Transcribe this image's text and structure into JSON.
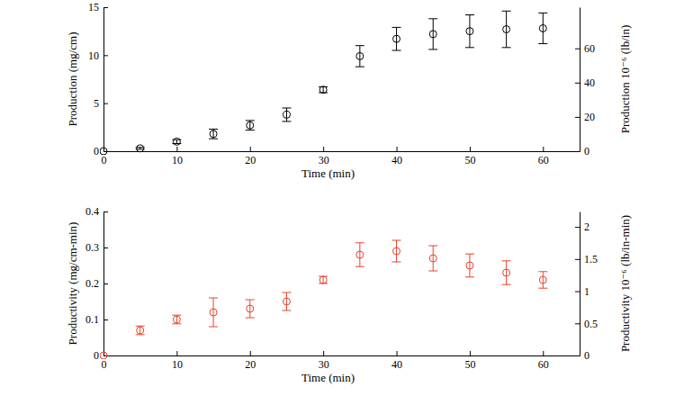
{
  "chart_data": [
    {
      "type": "scatter",
      "x_label": "Time (min)",
      "y_label": "Production (mg/cm)",
      "y2_label": "Production 10⁻⁶ (lb/in)",
      "x": [
        0,
        5,
        10,
        15,
        20,
        25,
        30,
        35,
        40,
        45,
        50,
        55,
        60
      ],
      "series": [
        {
          "color": "#000000",
          "marker": "circle",
          "values": [
            0,
            0.3,
            1.0,
            1.8,
            2.7,
            3.8,
            6.4,
            9.9,
            11.7,
            12.2,
            12.5,
            12.7,
            12.8
          ],
          "errors": [
            0,
            0.1,
            0.2,
            0.5,
            0.5,
            0.7,
            0.3,
            1.1,
            1.2,
            1.6,
            1.7,
            1.9,
            1.6
          ]
        }
      ],
      "xlim": [
        0,
        65
      ],
      "xticks": [
        0,
        10,
        20,
        30,
        40,
        50,
        60
      ],
      "ylim": [
        0,
        15
      ],
      "yticks": [
        0,
        5,
        10,
        15
      ],
      "y2lim": [
        0,
        84
      ],
      "y2ticks": [
        0,
        20,
        40,
        60
      ],
      "grid": false
    },
    {
      "type": "scatter",
      "x_label": "Time (min)",
      "y_label": "Productivity (mg/cm-min)",
      "y2_label": "Productivity 10⁻⁶ (lb/in-min)",
      "x": [
        0,
        5,
        10,
        15,
        20,
        25,
        30,
        35,
        40,
        45,
        50,
        55,
        60
      ],
      "series": [
        {
          "color": "#e8432e",
          "marker": "circle",
          "values": [
            0,
            0.07,
            0.1,
            0.12,
            0.13,
            0.15,
            0.21,
            0.28,
            0.29,
            0.27,
            0.25,
            0.23,
            0.21
          ],
          "errors": [
            0,
            0.012,
            0.012,
            0.04,
            0.025,
            0.025,
            0.01,
            0.033,
            0.03,
            0.035,
            0.032,
            0.033,
            0.023
          ]
        }
      ],
      "xlim": [
        0,
        65
      ],
      "xticks": [
        0,
        10,
        20,
        30,
        40,
        50,
        60
      ],
      "ylim": [
        0,
        0.4
      ],
      "yticks": [
        0,
        0.1,
        0.2,
        0.3,
        0.4
      ],
      "y2lim": [
        0,
        2.24
      ],
      "y2ticks": [
        0,
        0.5,
        1,
        1.5,
        2
      ],
      "grid": false
    }
  ]
}
